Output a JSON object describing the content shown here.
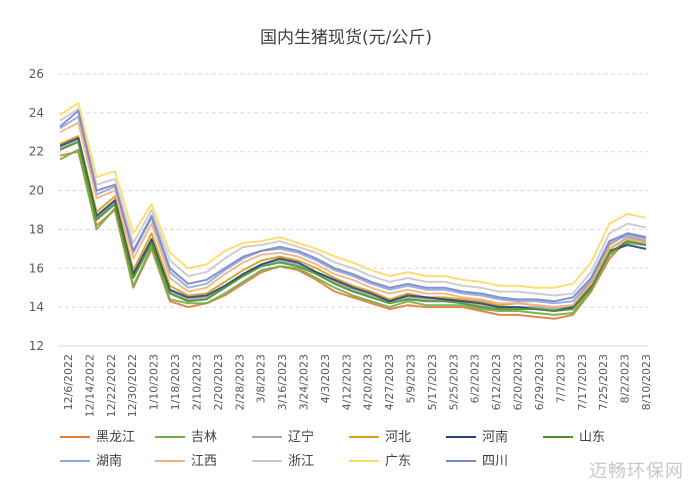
{
  "chart_data": {
    "type": "line",
    "title": "国内生猪现货(元/公斤)",
    "ylim": [
      12,
      26
    ],
    "yticks": [
      "12",
      "14",
      "16",
      "18",
      "20",
      "22",
      "24",
      "26"
    ],
    "grid": "horizontal dashed",
    "legend_position": "bottom",
    "x_tick_labels": [
      "12/6/2022",
      "12/14/2022",
      "12/22/2022",
      "12/30/2022",
      "1/10/2023",
      "1/18/2023",
      "2/10/2023",
      "2/20/2023",
      "2/28/2023",
      "3/8/2023",
      "3/16/2023",
      "3/24/2023",
      "4/3/2023",
      "4/12/2023",
      "4/20/2023",
      "4/27/2023",
      "5/9/2023",
      "5/17/2023",
      "5/25/2023",
      "6/2/2023",
      "6/12/2023",
      "6/20/2023",
      "6/29/2023",
      "7/7/2023",
      "7/17/2023",
      "7/25/2023",
      "8/2/2023",
      "8/10/2023"
    ],
    "series": [
      {
        "name": "黑龙江",
        "color": "#e07b39",
        "values": [
          21.8,
          22.0,
          18.2,
          19.0,
          15.0,
          17.0,
          14.3,
          14.0,
          14.2,
          14.6,
          15.2,
          15.8,
          16.1,
          15.9,
          15.4,
          14.8,
          14.5,
          14.2,
          13.9,
          14.1,
          14.0,
          14.0,
          14.0,
          13.8,
          13.6,
          13.6,
          13.5,
          13.4,
          13.6,
          14.8,
          16.5,
          17.5,
          17.3
        ]
      },
      {
        "name": "吉林",
        "color": "#70ad47",
        "values": [
          21.6,
          22.1,
          18.0,
          19.1,
          15.1,
          17.1,
          14.4,
          14.2,
          14.2,
          14.7,
          15.3,
          15.9,
          16.1,
          16.0,
          15.5,
          15.0,
          14.6,
          14.3,
          14.0,
          14.3,
          14.1,
          14.1,
          14.1,
          13.9,
          13.8,
          13.8,
          13.7,
          13.6,
          13.7,
          14.9,
          16.7,
          17.3,
          17.2
        ]
      },
      {
        "name": "辽宁",
        "color": "#a5a5a5",
        "values": [
          22.2,
          22.6,
          18.6,
          19.4,
          15.6,
          17.4,
          14.8,
          14.4,
          14.5,
          15.0,
          15.7,
          16.2,
          16.4,
          16.2,
          15.8,
          15.3,
          14.9,
          14.6,
          14.3,
          14.5,
          14.4,
          14.4,
          14.3,
          14.1,
          14.0,
          14.0,
          14.0,
          13.9,
          14.0,
          15.2,
          17.0,
          17.6,
          17.4
        ]
      },
      {
        "name": "河北",
        "color": "#d4a017",
        "values": [
          22.4,
          22.8,
          18.9,
          19.7,
          15.9,
          17.8,
          15.1,
          14.6,
          14.7,
          15.3,
          15.9,
          16.4,
          16.6,
          16.4,
          16.0,
          15.5,
          15.1,
          14.8,
          14.4,
          14.7,
          14.5,
          14.5,
          14.4,
          14.3,
          14.1,
          14.2,
          14.1,
          14.0,
          14.1,
          15.3,
          17.2,
          17.8,
          17.6
        ]
      },
      {
        "name": "河南",
        "color": "#264478",
        "values": [
          22.3,
          22.7,
          18.7,
          19.5,
          15.7,
          17.5,
          14.9,
          14.5,
          14.6,
          15.1,
          15.7,
          16.2,
          16.5,
          16.3,
          15.8,
          15.4,
          15.0,
          14.7,
          14.3,
          14.6,
          14.5,
          14.4,
          14.3,
          14.2,
          14.0,
          14.0,
          13.9,
          13.8,
          14.0,
          15.1,
          16.9,
          17.2,
          17.0
        ]
      },
      {
        "name": "山东",
        "color": "#4d8f2e",
        "values": [
          22.1,
          22.5,
          18.5,
          19.3,
          15.5,
          17.3,
          14.7,
          14.3,
          14.4,
          15.0,
          15.6,
          16.1,
          16.3,
          16.1,
          15.7,
          15.2,
          14.8,
          14.5,
          14.2,
          14.4,
          14.3,
          14.3,
          14.2,
          14.0,
          13.9,
          13.9,
          13.9,
          13.8,
          13.9,
          15.0,
          16.8,
          17.4,
          17.2
        ]
      },
      {
        "name": "湖南",
        "color": "#8faadc",
        "values": [
          23.2,
          23.8,
          19.8,
          20.2,
          16.8,
          18.6,
          15.8,
          15.0,
          15.2,
          15.9,
          16.5,
          16.9,
          17.0,
          16.8,
          16.4,
          15.9,
          15.6,
          15.2,
          14.9,
          15.1,
          14.9,
          14.9,
          14.7,
          14.6,
          14.4,
          14.3,
          14.3,
          14.2,
          14.3,
          15.4,
          17.3,
          17.7,
          17.5
        ]
      },
      {
        "name": "江西",
        "color": "#f4b183",
        "values": [
          23.0,
          23.5,
          19.6,
          20.0,
          16.5,
          18.3,
          15.5,
          14.8,
          15.0,
          15.7,
          16.3,
          16.7,
          16.8,
          16.6,
          16.2,
          15.7,
          15.4,
          15.0,
          14.7,
          14.9,
          14.7,
          14.7,
          14.5,
          14.4,
          14.2,
          14.2,
          14.1,
          14.0,
          14.1,
          15.2,
          17.0,
          17.5,
          17.3
        ]
      },
      {
        "name": "浙江",
        "color": "#c9c9c9",
        "values": [
          23.6,
          24.2,
          20.3,
          20.6,
          17.3,
          19.0,
          16.4,
          15.6,
          15.8,
          16.5,
          17.1,
          17.2,
          17.4,
          17.1,
          16.8,
          16.3,
          16.0,
          15.6,
          15.3,
          15.5,
          15.3,
          15.3,
          15.1,
          15.0,
          14.8,
          14.8,
          14.7,
          14.6,
          14.7,
          15.8,
          17.8,
          18.3,
          18.1
        ]
      },
      {
        "name": "广东",
        "color": "#ffd966",
        "values": [
          23.9,
          24.5,
          20.7,
          21.0,
          17.8,
          19.3,
          16.8,
          16.0,
          16.2,
          16.9,
          17.3,
          17.4,
          17.6,
          17.3,
          17.0,
          16.6,
          16.3,
          15.9,
          15.6,
          15.8,
          15.6,
          15.6,
          15.4,
          15.3,
          15.1,
          15.1,
          15.0,
          15.0,
          15.2,
          16.3,
          18.3,
          18.8,
          18.6
        ]
      },
      {
        "name": "四川",
        "color": "#7a86c8",
        "values": [
          23.3,
          24.1,
          20.0,
          20.3,
          16.9,
          18.7,
          16.0,
          15.2,
          15.4,
          16.0,
          16.6,
          16.9,
          17.1,
          16.9,
          16.5,
          16.0,
          15.7,
          15.3,
          15.0,
          15.2,
          15.0,
          15.0,
          14.8,
          14.7,
          14.5,
          14.4,
          14.4,
          14.3,
          14.5,
          15.5,
          17.4,
          17.8,
          17.6
        ]
      }
    ]
  },
  "watermark": "迈畅环保网"
}
